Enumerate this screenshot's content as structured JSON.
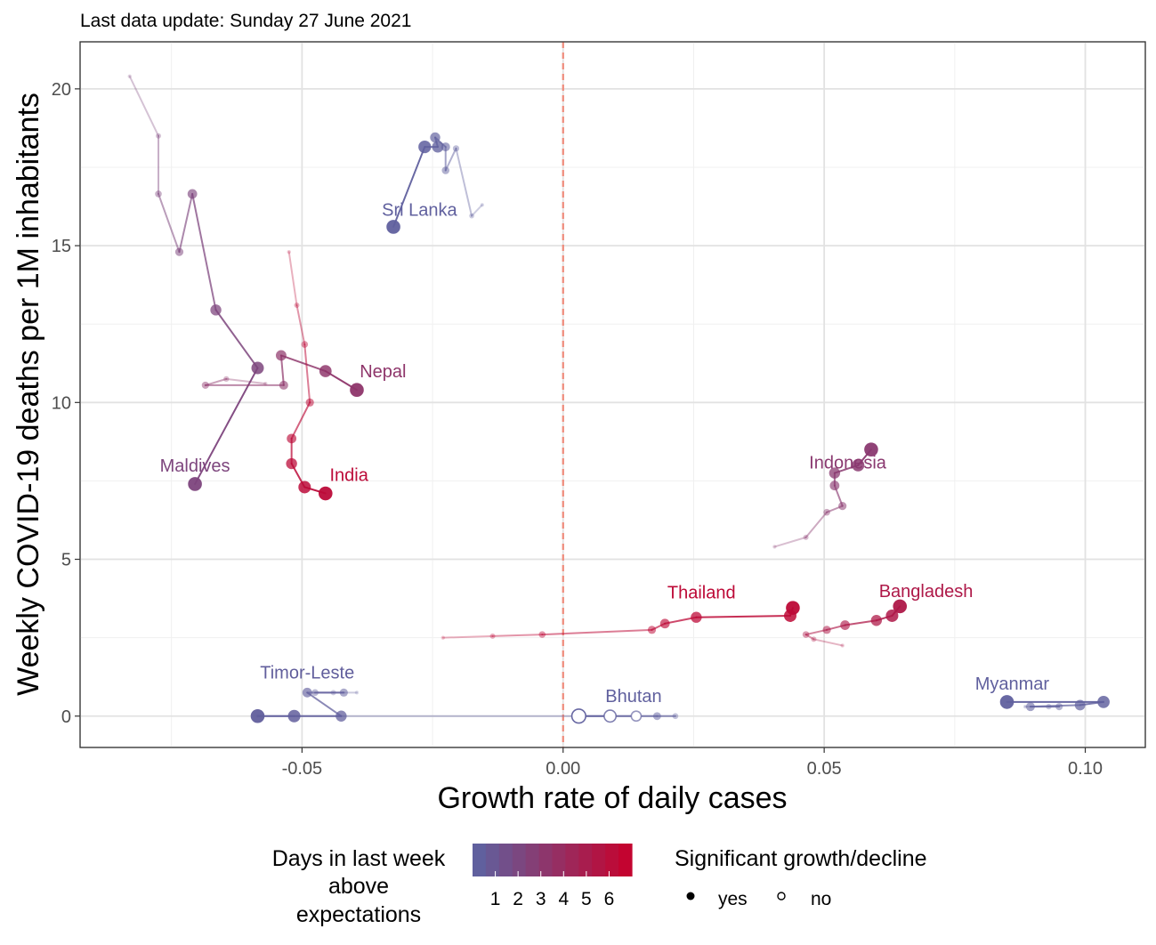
{
  "subtitle": "Last data update: Sunday 27 June 2021",
  "chart_data": {
    "type": "scatter",
    "xlabel": "Growth rate of daily cases",
    "ylabel": "Weekly COVID-19 deaths per 1M inhabitants",
    "xlim": [
      -0.0925,
      0.1115
    ],
    "ylim": [
      -1.0,
      21.5
    ],
    "x_ticks": [
      -0.05,
      0.0,
      0.05,
      0.1
    ],
    "x_tick_labels": [
      "-0.05",
      "0.00",
      "0.05",
      "0.10"
    ],
    "y_ticks": [
      0,
      5,
      10,
      15,
      20
    ],
    "y_tick_labels": [
      "0",
      "5",
      "10",
      "15",
      "20"
    ],
    "grid": true,
    "reference_line": {
      "x": 0.0,
      "style": "dashed",
      "color": "#ef8a7a"
    },
    "color_scale": {
      "low": "#5b64a3",
      "high": "#c8002b",
      "min": 0,
      "max": 7
    },
    "series": [
      {
        "name": "Sri Lanka",
        "days_above": 0.3,
        "points": [
          [
            -0.0155,
            16.3
          ],
          [
            -0.0175,
            15.95
          ],
          [
            -0.0205,
            18.1
          ],
          [
            -0.0225,
            17.4
          ],
          [
            -0.0225,
            18.15
          ],
          [
            -0.0245,
            18.45
          ],
          [
            -0.024,
            18.15
          ],
          [
            -0.0265,
            18.15
          ],
          [
            -0.0325,
            15.6
          ]
        ],
        "significant": [
          true,
          true,
          true,
          true,
          true,
          true,
          true,
          true,
          true
        ]
      },
      {
        "name": "Maldives",
        "days_above": 2.2,
        "points": [
          [
            -0.083,
            20.4
          ],
          [
            -0.0775,
            18.5
          ],
          [
            -0.0775,
            16.65
          ],
          [
            -0.0735,
            14.8
          ],
          [
            -0.071,
            16.65
          ],
          [
            -0.0665,
            12.95
          ],
          [
            -0.0585,
            11.1
          ],
          [
            -0.0705,
            7.4
          ]
        ],
        "significant": [
          true,
          true,
          true,
          true,
          true,
          true,
          true,
          true
        ]
      },
      {
        "name": "Nepal",
        "days_above": 3.3,
        "points": [
          [
            -0.057,
            10.6
          ],
          [
            -0.0645,
            10.75
          ],
          [
            -0.0685,
            10.55
          ],
          [
            -0.0535,
            10.55
          ],
          [
            -0.054,
            11.5
          ],
          [
            -0.0455,
            11.0
          ],
          [
            -0.0395,
            10.4
          ]
        ],
        "significant": [
          true,
          true,
          true,
          true,
          true,
          true,
          true
        ]
      },
      {
        "name": "India",
        "days_above": 6.2,
        "points": [
          [
            -0.0525,
            14.8
          ],
          [
            -0.051,
            13.1
          ],
          [
            -0.0495,
            11.85
          ],
          [
            -0.0485,
            10.0
          ],
          [
            -0.052,
            8.85
          ],
          [
            -0.052,
            8.05
          ],
          [
            -0.0495,
            7.3
          ],
          [
            -0.0455,
            7.1
          ]
        ],
        "significant": [
          true,
          true,
          true,
          true,
          true,
          true,
          true,
          true
        ]
      },
      {
        "name": "Indonesia",
        "days_above": 3.0,
        "points": [
          [
            0.0405,
            5.4
          ],
          [
            0.0465,
            5.7
          ],
          [
            0.0505,
            6.5
          ],
          [
            0.0535,
            6.7
          ],
          [
            0.052,
            7.35
          ],
          [
            0.052,
            7.75
          ],
          [
            0.0565,
            8.0
          ],
          [
            0.059,
            8.5
          ]
        ],
        "significant": [
          true,
          true,
          true,
          true,
          true,
          true,
          true,
          true
        ]
      },
      {
        "name": "Bangladesh",
        "days_above": 5.3,
        "points": [
          [
            0.0535,
            2.25
          ],
          [
            0.048,
            2.45
          ],
          [
            0.0465,
            2.6
          ],
          [
            0.0505,
            2.75
          ],
          [
            0.054,
            2.9
          ],
          [
            0.06,
            3.05
          ],
          [
            0.063,
            3.2
          ],
          [
            0.0645,
            3.5
          ]
        ],
        "significant": [
          true,
          true,
          true,
          true,
          true,
          true,
          true,
          true
        ]
      },
      {
        "name": "Thailand",
        "days_above": 6.3,
        "points": [
          [
            -0.023,
            2.5
          ],
          [
            -0.0135,
            2.55
          ],
          [
            -0.004,
            2.6
          ],
          [
            0.017,
            2.75
          ],
          [
            0.0195,
            2.95
          ],
          [
            0.0255,
            3.15
          ],
          [
            0.0435,
            3.2
          ],
          [
            0.044,
            3.45
          ]
        ],
        "significant": [
          true,
          true,
          true,
          true,
          true,
          true,
          true,
          true
        ]
      },
      {
        "name": "Timor-Leste",
        "days_above": 0.4,
        "points": [
          [
            -0.0395,
            0.75
          ],
          [
            -0.044,
            0.75
          ],
          [
            -0.0475,
            0.75
          ],
          [
            -0.042,
            0.75
          ],
          [
            -0.049,
            0.75
          ],
          [
            -0.0425,
            0.0
          ],
          [
            -0.0515,
            0.0
          ],
          [
            -0.0585,
            0.0
          ]
        ],
        "significant": [
          true,
          true,
          true,
          true,
          true,
          true,
          true,
          true
        ]
      },
      {
        "name": "Bhutan",
        "days_above": 0.3,
        "points": [
          [
            -0.0585,
            0.0
          ],
          [
            0.0215,
            0.0
          ],
          [
            0.018,
            0.0
          ],
          [
            0.014,
            0.0
          ],
          [
            0.009,
            0.0
          ],
          [
            0.003,
            0.0
          ]
        ],
        "significant": [
          true,
          true,
          true,
          false,
          false,
          false
        ]
      },
      {
        "name": "Myanmar",
        "days_above": 0.3,
        "points": [
          [
            0.0885,
            0.3
          ],
          [
            0.093,
            0.3
          ],
          [
            0.095,
            0.3
          ],
          [
            0.0895,
            0.3
          ],
          [
            0.099,
            0.35
          ],
          [
            0.1035,
            0.45
          ],
          [
            0.085,
            0.45
          ]
        ],
        "significant": [
          true,
          true,
          true,
          true,
          true,
          true,
          true
        ]
      }
    ],
    "labels": [
      {
        "text": "Sri Lanka",
        "x": -0.0275,
        "y": 15.95
      },
      {
        "text": "Maldives",
        "x": -0.0705,
        "y": 7.8
      },
      {
        "text": "Nepal",
        "x": -0.0345,
        "y": 10.8
      },
      {
        "text": "India",
        "x": -0.041,
        "y": 7.5
      },
      {
        "text": "Indonesia",
        "x": 0.0545,
        "y": 7.9
      },
      {
        "text": "Bangladesh",
        "x": 0.0695,
        "y": 3.8
      },
      {
        "text": "Thailand",
        "x": 0.0265,
        "y": 3.75
      },
      {
        "text": "Timor-Leste",
        "x": -0.049,
        "y": 1.2
      },
      {
        "text": "Bhutan",
        "x": 0.0135,
        "y": 0.45
      },
      {
        "text": "Myanmar",
        "x": 0.086,
        "y": 0.85
      }
    ]
  },
  "legend": {
    "color_title_lines": [
      "Days in last week",
      "above",
      "expectations"
    ],
    "color_ticks": [
      "1",
      "2",
      "3",
      "4",
      "5",
      "6"
    ],
    "shape_title": "Significant growth/decline",
    "shape_items": [
      {
        "label": "yes",
        "filled": true
      },
      {
        "label": "no",
        "filled": false
      }
    ]
  }
}
